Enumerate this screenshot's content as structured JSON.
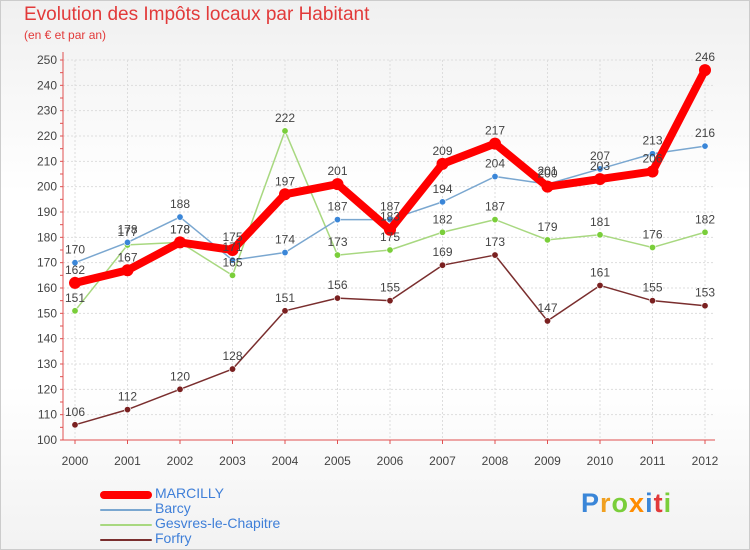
{
  "chart_data": {
    "type": "line",
    "title": "Evolution des Impôts locaux par Habitant",
    "subtitle": "(en € et par an)",
    "xlabel": "",
    "ylabel": "",
    "ylim": [
      100,
      250
    ],
    "yticks": [
      100,
      110,
      120,
      130,
      140,
      150,
      160,
      170,
      180,
      190,
      200,
      210,
      220,
      230,
      240,
      250
    ],
    "grid": true,
    "legend_position": "bottom-left",
    "x": [
      "2000",
      "2001",
      "2002",
      "2003",
      "2004",
      "2005",
      "2006",
      "2007",
      "2008",
      "2009",
      "2010",
      "2011",
      "2012"
    ],
    "series": [
      {
        "name": "MARCILLY",
        "color": "#ff0000",
        "marker": "#ff0000",
        "values": [
          162,
          167,
          178,
          175,
          197,
          201,
          183,
          209,
          217,
          200,
          203,
          206,
          246
        ]
      },
      {
        "name": "Barcy",
        "color": "#7aa7d0",
        "marker": "#3a86d8",
        "values": [
          170,
          178,
          188,
          171,
          174,
          187,
          187,
          194,
          204,
          201,
          207,
          213,
          216
        ]
      },
      {
        "name": "Gesvres-le-Chapitre",
        "color": "#a8d880",
        "marker": "#7ace3a",
        "values": [
          151,
          177,
          178,
          165,
          222,
          173,
          175,
          182,
          187,
          179,
          181,
          176,
          182
        ]
      },
      {
        "name": "Forfry",
        "color": "#7a2e2e",
        "marker": "#7a2020",
        "values": [
          106,
          112,
          120,
          128,
          151,
          156,
          155,
          169,
          173,
          147,
          161,
          155,
          153
        ]
      }
    ]
  },
  "logo": {
    "letters": [
      "P",
      "r",
      "o",
      "x",
      "i",
      "t",
      "i"
    ],
    "colors": [
      "#3a86d8",
      "#f0a020",
      "#7ace3a",
      "#ff8c00",
      "#3a86d8",
      "#e23a3a",
      "#7ace3a"
    ]
  }
}
